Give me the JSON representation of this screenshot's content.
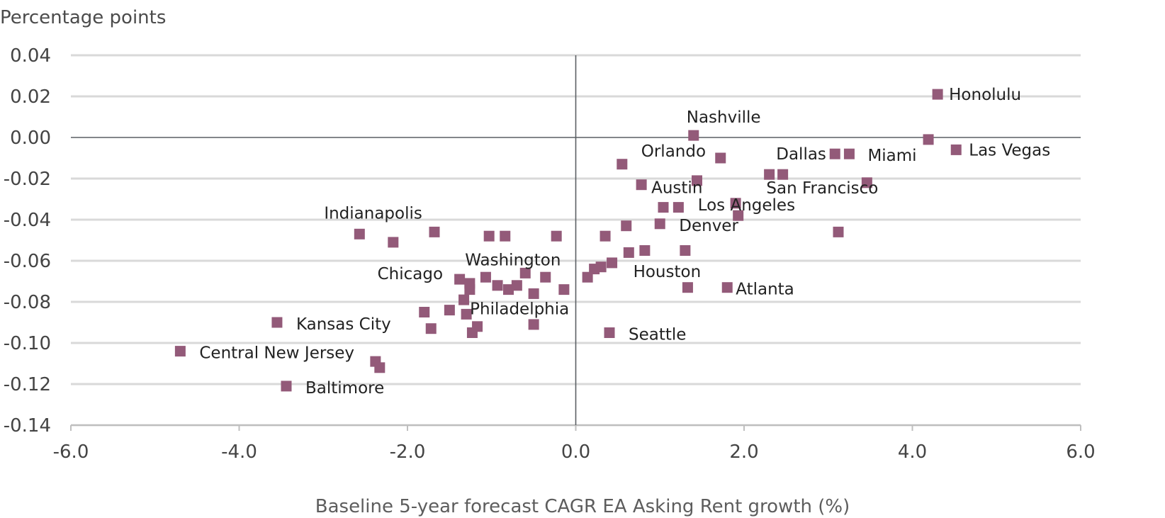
{
  "chart_data": {
    "type": "scatter",
    "title": "",
    "xlabel": "Baseline 5-year forecast CAGR EA Asking Rent growth (%)",
    "ylabel": "Percentage points",
    "xlim": [
      -6.0,
      6.0
    ],
    "ylim": [
      -0.14,
      0.04
    ],
    "x_ticks": [
      -6.0,
      -4.0,
      -2.0,
      0.0,
      2.0,
      4.0,
      6.0
    ],
    "x_tick_labels": [
      "-6.0",
      "-4.0",
      "-2.0",
      "0.0",
      "2.0",
      "4.0",
      "6.0"
    ],
    "y_ticks": [
      0.04,
      0.02,
      0.0,
      -0.02,
      -0.04,
      -0.06,
      -0.08,
      -0.1,
      -0.12,
      -0.14
    ],
    "y_tick_labels": [
      "0.04",
      "0.02",
      "0.00",
      "-0.02",
      "-0.04",
      "-0.06",
      "-0.08",
      "-0.10",
      "-0.12",
      "-0.14"
    ],
    "grid": "horizontal",
    "marker_color": "#935a79",
    "points": [
      {
        "x": 4.3,
        "y": 0.021,
        "label": "Honolulu"
      },
      {
        "x": 4.19,
        "y": -0.001,
        "label": ""
      },
      {
        "x": 4.52,
        "y": -0.006,
        "label": "Las Vegas"
      },
      {
        "x": 1.4,
        "y": 0.001,
        "label": "Nashville"
      },
      {
        "x": 1.72,
        "y": -0.01,
        "label": "Orlando"
      },
      {
        "x": 0.55,
        "y": -0.013,
        "label": ""
      },
      {
        "x": 3.08,
        "y": -0.008,
        "label": "Dallas"
      },
      {
        "x": 3.25,
        "y": -0.008,
        "label": "Miami"
      },
      {
        "x": 2.3,
        "y": -0.018,
        "label": ""
      },
      {
        "x": 2.46,
        "y": -0.018,
        "label": ""
      },
      {
        "x": 3.46,
        "y": -0.022,
        "label": "San Francisco"
      },
      {
        "x": 0.78,
        "y": -0.023,
        "label": "Austin"
      },
      {
        "x": 1.44,
        "y": -0.021,
        "label": ""
      },
      {
        "x": 1.9,
        "y": -0.032,
        "label": ""
      },
      {
        "x": 1.04,
        "y": -0.034,
        "label": ""
      },
      {
        "x": 1.22,
        "y": -0.034,
        "label": ""
      },
      {
        "x": 1.93,
        "y": -0.038,
        "label": "Los Angeles"
      },
      {
        "x": 1.0,
        "y": -0.042,
        "label": "Denver"
      },
      {
        "x": 0.6,
        "y": -0.043,
        "label": ""
      },
      {
        "x": 3.12,
        "y": -0.046,
        "label": ""
      },
      {
        "x": 0.35,
        "y": -0.048,
        "label": ""
      },
      {
        "x": -0.23,
        "y": -0.048,
        "label": ""
      },
      {
        "x": -0.84,
        "y": -0.048,
        "label": ""
      },
      {
        "x": -1.03,
        "y": -0.048,
        "label": ""
      },
      {
        "x": -1.68,
        "y": -0.046,
        "label": ""
      },
      {
        "x": -2.57,
        "y": -0.047,
        "label": "Indianapolis"
      },
      {
        "x": -2.17,
        "y": -0.051,
        "label": ""
      },
      {
        "x": 0.63,
        "y": -0.056,
        "label": ""
      },
      {
        "x": 0.82,
        "y": -0.055,
        "label": ""
      },
      {
        "x": 1.3,
        "y": -0.055,
        "label": ""
      },
      {
        "x": 0.43,
        "y": -0.061,
        "label": "Houston"
      },
      {
        "x": 0.3,
        "y": -0.063,
        "label": ""
      },
      {
        "x": 0.22,
        "y": -0.064,
        "label": ""
      },
      {
        "x": 0.14,
        "y": -0.068,
        "label": ""
      },
      {
        "x": -0.6,
        "y": -0.066,
        "label": "Washington"
      },
      {
        "x": -0.36,
        "y": -0.068,
        "label": ""
      },
      {
        "x": -1.07,
        "y": -0.068,
        "label": ""
      },
      {
        "x": -0.93,
        "y": -0.072,
        "label": ""
      },
      {
        "x": -0.8,
        "y": -0.074,
        "label": ""
      },
      {
        "x": -0.7,
        "y": -0.072,
        "label": ""
      },
      {
        "x": -1.38,
        "y": -0.069,
        "label": "Chicago"
      },
      {
        "x": -1.26,
        "y": -0.071,
        "label": ""
      },
      {
        "x": -1.26,
        "y": -0.074,
        "label": ""
      },
      {
        "x": -1.33,
        "y": -0.079,
        "label": ""
      },
      {
        "x": -0.5,
        "y": -0.076,
        "label": ""
      },
      {
        "x": -0.14,
        "y": -0.074,
        "label": ""
      },
      {
        "x": 1.33,
        "y": -0.073,
        "label": ""
      },
      {
        "x": 1.8,
        "y": -0.073,
        "label": "Atlanta"
      },
      {
        "x": -1.8,
        "y": -0.085,
        "label": ""
      },
      {
        "x": -1.5,
        "y": -0.084,
        "label": ""
      },
      {
        "x": -1.3,
        "y": -0.086,
        "label": "Philadelphia"
      },
      {
        "x": -1.17,
        "y": -0.092,
        "label": ""
      },
      {
        "x": -1.23,
        "y": -0.095,
        "label": ""
      },
      {
        "x": -1.72,
        "y": -0.093,
        "label": ""
      },
      {
        "x": -0.5,
        "y": -0.091,
        "label": ""
      },
      {
        "x": 0.4,
        "y": -0.095,
        "label": "Seattle"
      },
      {
        "x": -3.55,
        "y": -0.09,
        "label": "Kansas City"
      },
      {
        "x": -4.7,
        "y": -0.104,
        "label": "Central New Jersey"
      },
      {
        "x": -2.38,
        "y": -0.109,
        "label": ""
      },
      {
        "x": -2.33,
        "y": -0.112,
        "label": ""
      },
      {
        "x": -3.44,
        "y": -0.121,
        "label": "Baltimore"
      }
    ]
  }
}
